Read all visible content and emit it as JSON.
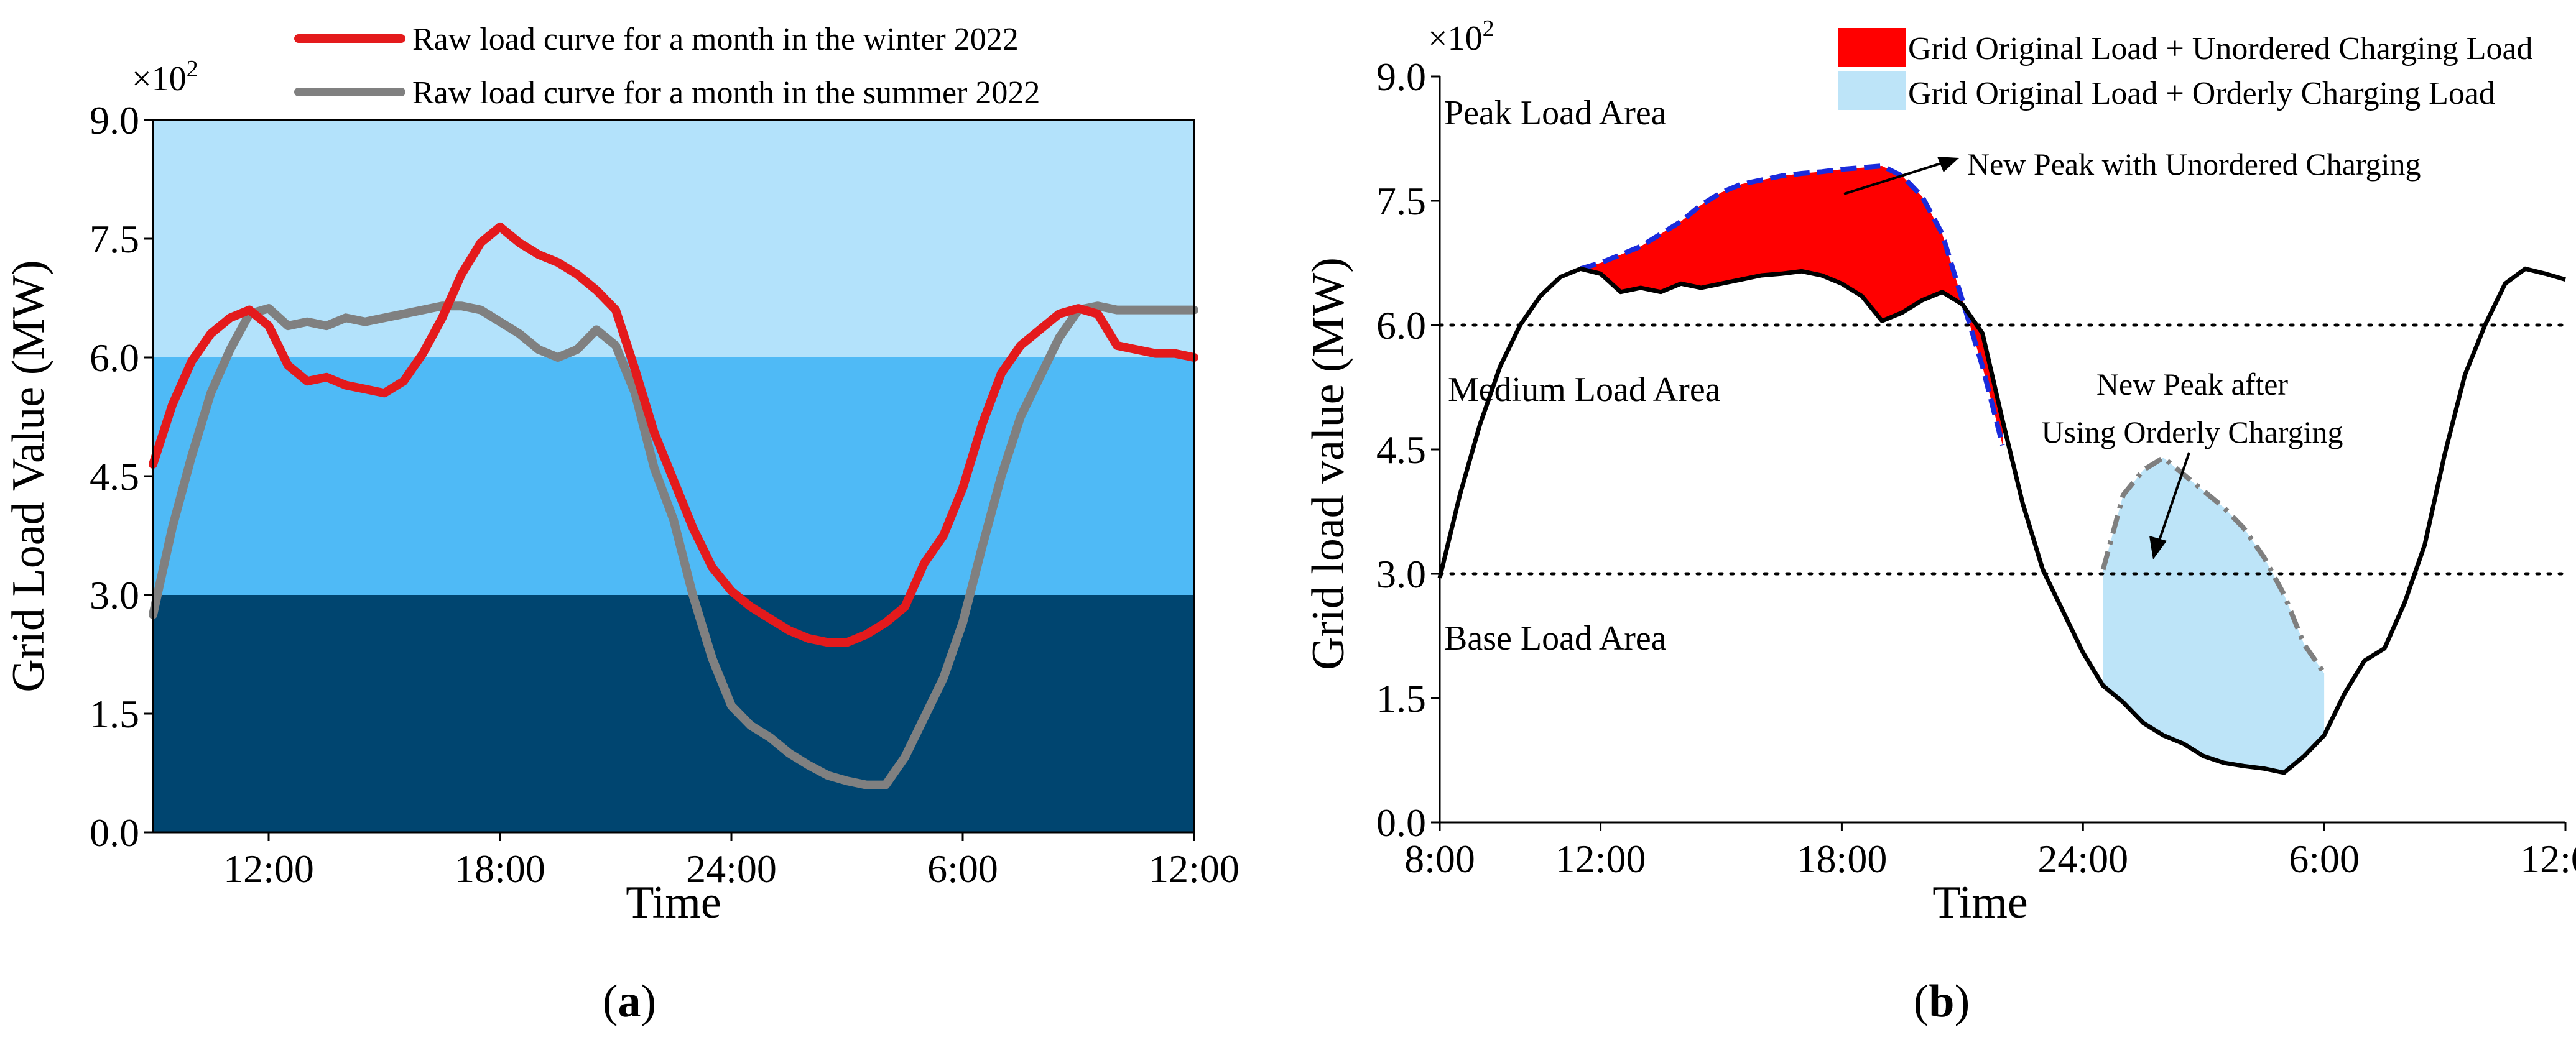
{
  "colors": {
    "winter": "#e41a1c",
    "summer": "#808080",
    "peak_band": "#b3e2fb",
    "medium_band": "#4fbaf6",
    "base_band": "#004570",
    "unordered_fill": "#ff0000",
    "unordered_edge": "#1a2bdc",
    "orderly_fill": "#bde4f8",
    "orderly_edge": "#7f7f7f",
    "base_curve": "#000000"
  },
  "chart_data": [
    {
      "type": "line",
      "panel_label": "(a)",
      "panel_letter": "a",
      "xlabel": "Time",
      "ylabel": "Grid Load Value (MW)",
      "y_multiplier": "×10",
      "y_multiplier_exp": "2",
      "xlim": [
        9,
        36
      ],
      "ylim": [
        0,
        9
      ],
      "yticks": [
        0,
        1.5,
        3,
        4.5,
        6,
        7.5,
        9
      ],
      "ytick_labels": [
        "0.0",
        "1.5",
        "3.0",
        "4.5",
        "6.0",
        "7.5",
        "9.0"
      ],
      "xticks": [
        12,
        18,
        24,
        30,
        36
      ],
      "xtick_labels": [
        "12:00",
        "18:00",
        "24:00",
        "6:00",
        "12:00"
      ],
      "bands": [
        {
          "name": "Peak",
          "from": 6,
          "to": 9
        },
        {
          "name": "Medium",
          "from": 3,
          "to": 6
        },
        {
          "name": "Base",
          "from": 0,
          "to": 3
        }
      ],
      "legend": [
        "Raw load curve for a month in the winter 2022",
        "Raw load curve for a month in the summer 2022"
      ],
      "series": [
        {
          "name": "Raw load curve for a month in the winter 2022",
          "x": [
            9,
            9.5,
            10,
            10.5,
            11,
            11.5,
            12,
            12.5,
            13,
            13.5,
            14,
            14.5,
            15,
            15.5,
            16,
            16.5,
            17,
            17.5,
            18,
            18.5,
            19,
            19.5,
            20,
            20.5,
            21,
            21.5,
            22,
            22.5,
            23,
            23.5,
            24,
            24.5,
            25,
            25.5,
            26,
            26.5,
            27,
            27.5,
            28,
            28.5,
            29,
            29.5,
            30,
            30.5,
            31,
            31.5,
            32,
            32.5,
            33,
            33.5,
            34,
            34.5,
            35,
            35.5,
            36
          ],
          "y": [
            4.65,
            5.4,
            5.95,
            6.3,
            6.5,
            6.6,
            6.4,
            5.9,
            5.7,
            5.75,
            5.65,
            5.6,
            5.55,
            5.7,
            6.05,
            6.5,
            7.05,
            7.45,
            7.65,
            7.45,
            7.3,
            7.2,
            7.05,
            6.85,
            6.6,
            5.85,
            5.05,
            4.45,
            3.85,
            3.35,
            3.05,
            2.85,
            2.7,
            2.55,
            2.45,
            2.4,
            2.4,
            2.5,
            2.65,
            2.85,
            3.4,
            3.75,
            4.35,
            5.15,
            5.8,
            6.15,
            6.35,
            6.55,
            6.62,
            6.55,
            6.15,
            6.1,
            6.05,
            6.05,
            6.0
          ]
        },
        {
          "name": "Raw load curve for a month in the summer 2022",
          "x": [
            9,
            9.5,
            10,
            10.5,
            11,
            11.5,
            12,
            12.5,
            13,
            13.5,
            14,
            14.5,
            15,
            15.5,
            16,
            16.5,
            17,
            17.5,
            18,
            18.5,
            19,
            19.5,
            20,
            20.5,
            21,
            21.5,
            22,
            22.5,
            23,
            23.5,
            24,
            24.5,
            25,
            25.5,
            26,
            26.5,
            27,
            27.5,
            28,
            28.5,
            29,
            29.5,
            30,
            30.5,
            31,
            31.5,
            32,
            32.5,
            33,
            33.5,
            34,
            34.5,
            35,
            35.5,
            36
          ],
          "y": [
            2.75,
            3.85,
            4.75,
            5.55,
            6.1,
            6.55,
            6.62,
            6.4,
            6.45,
            6.4,
            6.5,
            6.45,
            6.5,
            6.55,
            6.6,
            6.65,
            6.65,
            6.6,
            6.45,
            6.3,
            6.1,
            6.0,
            6.1,
            6.35,
            6.15,
            5.55,
            4.6,
            3.95,
            3.0,
            2.2,
            1.6,
            1.35,
            1.2,
            1.0,
            0.85,
            0.72,
            0.65,
            0.6,
            0.6,
            0.95,
            1.45,
            1.95,
            2.65,
            3.6,
            4.5,
            5.25,
            5.75,
            6.25,
            6.6,
            6.65,
            6.6,
            6.6,
            6.6,
            6.6,
            6.6
          ]
        }
      ]
    },
    {
      "type": "area",
      "panel_label": "(b)",
      "panel_letter": "b",
      "xlabel": "Time",
      "ylabel": "Grid load value (MW)",
      "y_multiplier": "×10",
      "y_multiplier_exp": "2",
      "xlim": [
        8,
        36
      ],
      "ylim": [
        0,
        9
      ],
      "yticks": [
        0,
        1.5,
        3,
        4.5,
        6,
        7.5,
        9
      ],
      "ytick_labels": [
        "0.0",
        "1.5",
        "3.0",
        "4.5",
        "6.0",
        "7.5",
        "9.0"
      ],
      "xticks": [
        8,
        12,
        18,
        24,
        30,
        36
      ],
      "xtick_labels": [
        "8:00",
        "12:00",
        "18:00",
        "24:00",
        "6:00",
        "12:00"
      ],
      "threshold_lines": [
        3,
        6
      ],
      "area_labels": [
        "Peak Load Area",
        "Medium Load Area",
        "Base Load Area"
      ],
      "legend": [
        "Grid Original Load + Unordered Charging Load",
        "Grid Original Load + Orderly Charging Load"
      ],
      "annotations": {
        "unordered_peak": "New Peak with Unordered Charging",
        "orderly_peak_line1": "New Peak after",
        "orderly_peak_line2": "Using Orderly Charging"
      },
      "series": [
        {
          "name": "Grid original load",
          "x": [
            8,
            8.5,
            9,
            9.5,
            10,
            10.5,
            11,
            11.5,
            12,
            12.5,
            13,
            13.5,
            14,
            14.5,
            15,
            15.5,
            16,
            16.5,
            17,
            17.5,
            18,
            18.5,
            19,
            19.5,
            20,
            20.5,
            21,
            21.5,
            22,
            22.5,
            23,
            23.5,
            24,
            24.5,
            25,
            25.5,
            26,
            26.5,
            27,
            27.5,
            28,
            28.5,
            29,
            29.5,
            30,
            30.5,
            31,
            31.5,
            32,
            32.5,
            33,
            33.5,
            34,
            34.5,
            35,
            35.5,
            36
          ],
          "y": [
            2.95,
            3.95,
            4.8,
            5.5,
            6.0,
            6.35,
            6.58,
            6.68,
            6.62,
            6.4,
            6.45,
            6.4,
            6.5,
            6.45,
            6.5,
            6.55,
            6.6,
            6.62,
            6.65,
            6.6,
            6.5,
            6.35,
            6.05,
            6.15,
            6.3,
            6.4,
            6.25,
            5.9,
            4.85,
            3.85,
            3.05,
            2.55,
            2.05,
            1.65,
            1.45,
            1.2,
            1.05,
            0.95,
            0.8,
            0.72,
            0.68,
            0.65,
            0.6,
            0.8,
            1.05,
            1.55,
            1.95,
            2.1,
            2.65,
            3.35,
            4.45,
            5.4,
            6.0,
            6.5,
            6.68,
            6.62,
            6.55
          ]
        },
        {
          "name": "Grid Original Load + Unordered Charging Load",
          "x": [
            11.5,
            12,
            12.5,
            13,
            13.5,
            14,
            14.5,
            15,
            15.5,
            16,
            16.5,
            17,
            17.5,
            18,
            18.5,
            19,
            19.5,
            20,
            20.5,
            21,
            21.5,
            22
          ],
          "y": [
            6.68,
            6.75,
            6.85,
            6.95,
            7.1,
            7.25,
            7.45,
            7.6,
            7.7,
            7.75,
            7.8,
            7.83,
            7.85,
            7.88,
            7.9,
            7.92,
            7.8,
            7.55,
            7.1,
            6.3,
            5.5,
            4.55
          ]
        },
        {
          "name": "Grid Original Load + Orderly Charging Load",
          "x": [
            24.5,
            25,
            25.5,
            26,
            26.5,
            27,
            27.5,
            28,
            28.5,
            29,
            29.5,
            30
          ],
          "y": [
            3.05,
            3.95,
            4.25,
            4.4,
            4.2,
            4.0,
            3.8,
            3.55,
            3.2,
            2.75,
            2.15,
            1.8
          ]
        }
      ]
    }
  ]
}
